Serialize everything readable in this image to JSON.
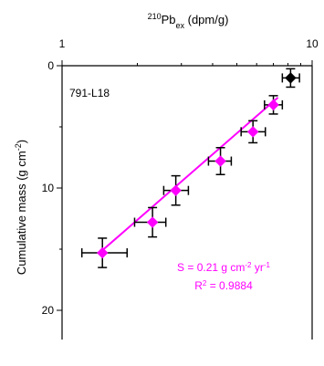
{
  "chart_data": {
    "type": "scatter",
    "title": "",
    "sample_label": "791-L18",
    "x_axis": {
      "label_sup": "210",
      "label_main": "Pb",
      "label_sub": "ex",
      "label_unit": " (dpm/g)",
      "scale": "log",
      "position": "top",
      "lim": [
        1,
        10
      ],
      "ticks": [
        {
          "value": 1,
          "label": "1"
        },
        {
          "value": 10,
          "label": "10"
        }
      ]
    },
    "y_axis": {
      "label_main": "Cumulative mass (g cm",
      "label_sup": "-2",
      "label_end": ")",
      "inverted": true,
      "lim": [
        0,
        23
      ],
      "ticks": [
        {
          "value": 0,
          "label": "0"
        },
        {
          "value": 10,
          "label": "10"
        },
        {
          "value": 20,
          "label": "20"
        }
      ]
    },
    "series": [
      {
        "color": "#000000",
        "points": [
          {
            "x": 8.2,
            "y": 1.0,
            "xerr_lo": 7.6,
            "xerr_hi": 8.9,
            "yerr": 0.75
          }
        ]
      },
      {
        "color": "#ff00ff",
        "points": [
          {
            "x": 7.0,
            "y": 3.2,
            "xerr_lo": 6.45,
            "xerr_hi": 7.6,
            "yerr": 0.75
          },
          {
            "x": 5.8,
            "y": 5.4,
            "xerr_lo": 5.2,
            "xerr_hi": 6.5,
            "yerr": 0.9
          },
          {
            "x": 4.3,
            "y": 7.8,
            "xerr_lo": 3.85,
            "xerr_hi": 4.75,
            "yerr": 1.1
          },
          {
            "x": 2.85,
            "y": 10.2,
            "xerr_lo": 2.55,
            "xerr_hi": 3.2,
            "yerr": 1.2
          },
          {
            "x": 2.3,
            "y": 12.8,
            "xerr_lo": 1.95,
            "xerr_hi": 2.6,
            "yerr": 1.2
          },
          {
            "x": 1.45,
            "y": 15.3,
            "xerr_lo": 1.2,
            "xerr_hi": 1.82,
            "yerr": 1.2
          }
        ]
      }
    ],
    "fit_line": {
      "color": "#ff00ff",
      "x": [
        1.43,
        7.3
      ],
      "y": [
        15.2,
        2.6
      ]
    },
    "annotations": {
      "color": "#ff00ff",
      "sar_prefix": "S = 0.21 g cm",
      "sar_sup1": "-2",
      "sar_mid": " yr",
      "sar_sup2": "-1",
      "r2_prefix": "R",
      "r2_sup": "2",
      "r2_suffix": " = 0.9884"
    }
  }
}
